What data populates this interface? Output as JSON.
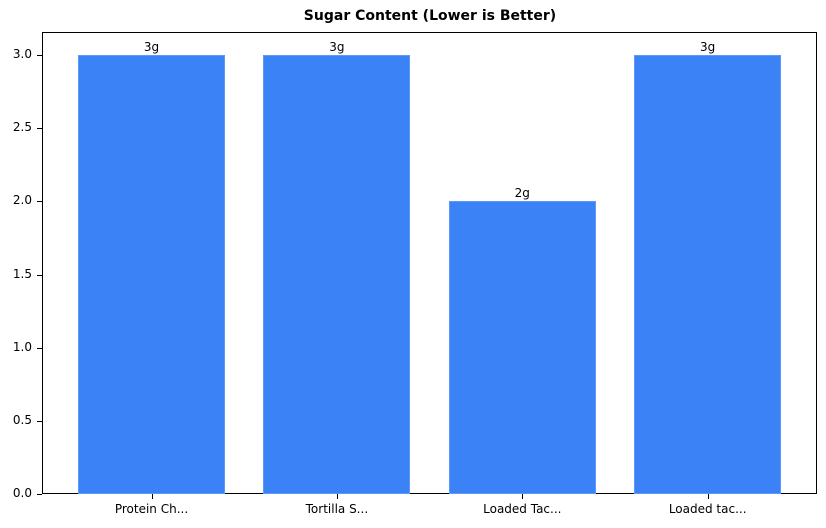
{
  "chart_data": {
    "type": "bar",
    "title": "Sugar Content (Lower is Better)",
    "xlabel": "",
    "ylabel": "",
    "categories": [
      "Protein Ch...",
      "Tortilla S...",
      "Loaded Tac...",
      "Loaded tac..."
    ],
    "values": [
      3,
      3,
      2,
      3
    ],
    "value_labels": [
      "3g",
      "3g",
      "2g",
      "3g"
    ],
    "ylim": [
      0,
      3.15
    ],
    "yticks": [
      "0.0",
      "0.5",
      "1.0",
      "1.5",
      "2.0",
      "2.5",
      "3.0"
    ],
    "grid": false,
    "legend": null,
    "bar_color": "#3b82f6"
  }
}
